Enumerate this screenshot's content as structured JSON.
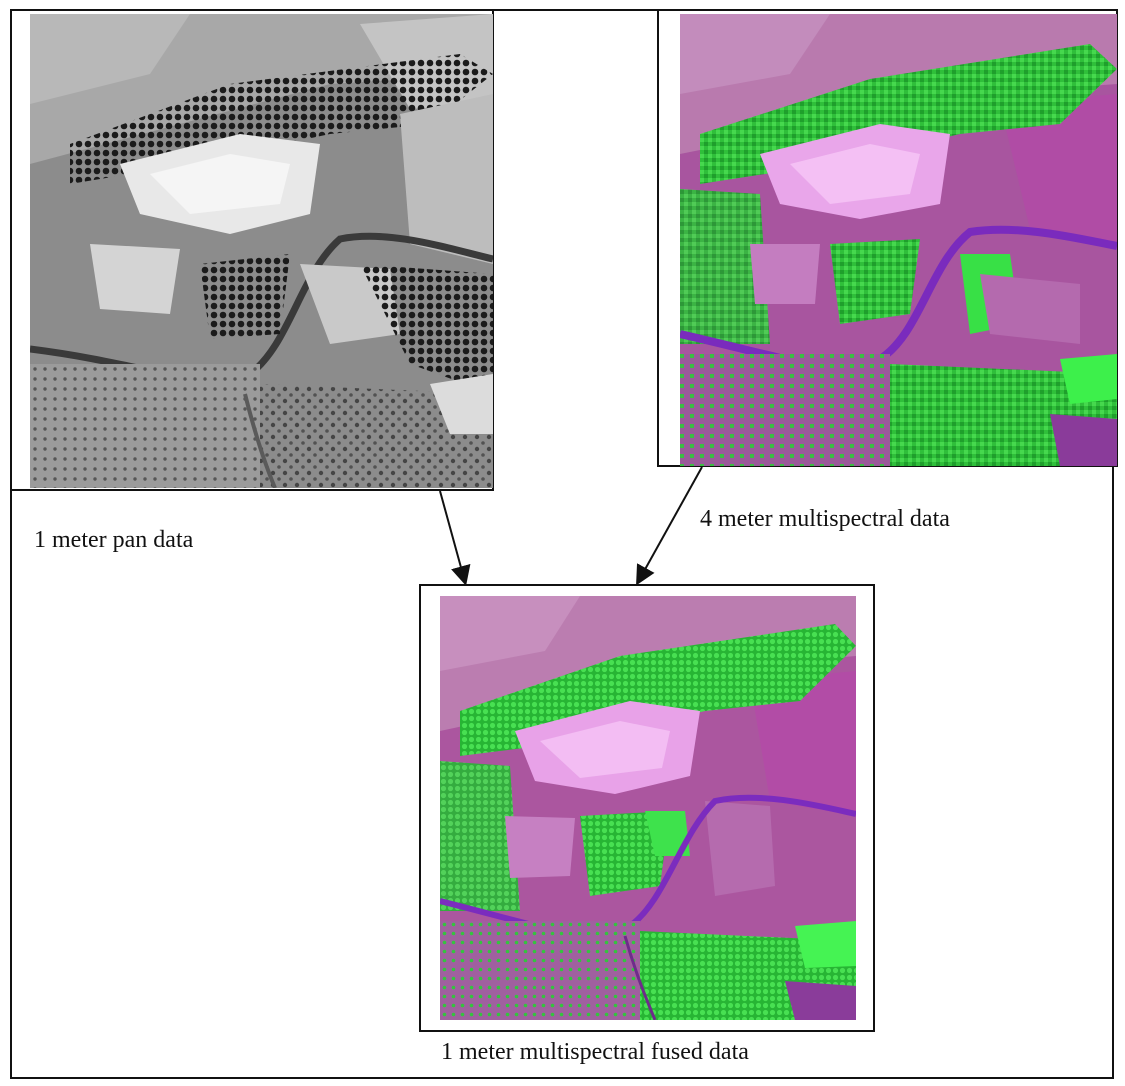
{
  "figure": {
    "pan_caption": "1 meter pan data",
    "ms_caption": "4 meter multispectral data",
    "fused_caption": "1 meter multispectral fused data"
  },
  "colors": {
    "frame": "#111111",
    "vegetation_green": "#2fd13a",
    "soil_magenta": "#b24aa8",
    "road_purple": "#7a2bbd",
    "settlement_pink": "#f0a0f0"
  },
  "icons": {
    "arrow_pan_to_fused": "arrow-down-right",
    "arrow_ms_to_fused": "arrow-down-left"
  }
}
